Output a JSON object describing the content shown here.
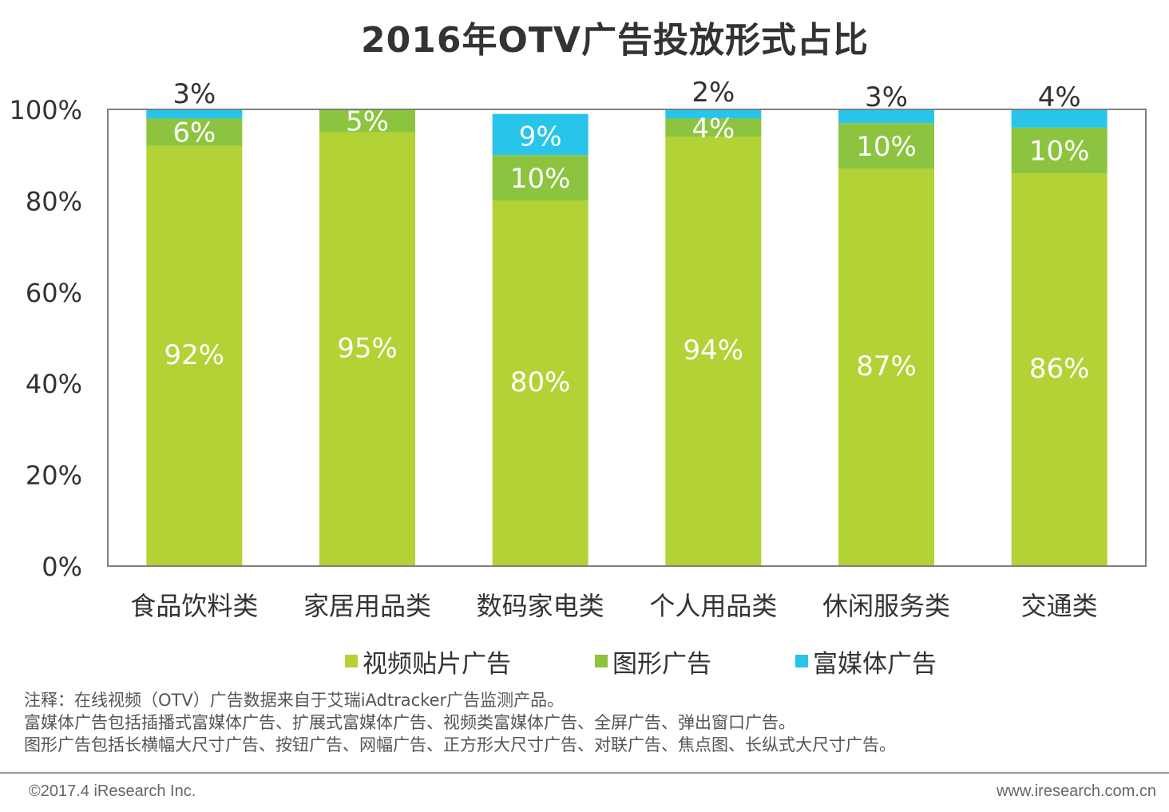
{
  "colors": {
    "video_patch": "#b2d235",
    "graphic": "#8cc43f",
    "rich_media": "#29c4ea",
    "frame": "#808080",
    "value_label_light": "#ffffff",
    "value_label_dark": "#333333"
  },
  "chart_data": {
    "type": "bar",
    "stacked": true,
    "title": "2016年OTV广告投放形式占比",
    "categories": [
      "食品饮料类",
      "家居用品类",
      "数码家电类",
      "个人用品类",
      "休闲服务类",
      "交通类"
    ],
    "series": [
      {
        "name": "视频贴片广告",
        "values": [
          92,
          95,
          80,
          94,
          87,
          86
        ],
        "labels": [
          "92%",
          "95%",
          "80%",
          "94%",
          "87%",
          "86%"
        ]
      },
      {
        "name": "图形广告",
        "values": [
          6,
          5,
          10,
          4,
          10,
          10
        ],
        "labels": [
          "6%",
          "5%",
          "10%",
          "4%",
          "10%",
          "10%"
        ]
      },
      {
        "name": "富媒体广告",
        "values": [
          3,
          0,
          9,
          2,
          3,
          4
        ],
        "labels": [
          "3%",
          "",
          "9%",
          "2%",
          "3%",
          "4%"
        ]
      }
    ],
    "yticks": [
      "0%",
      "20%",
      "40%",
      "60%",
      "80%",
      "100%"
    ],
    "ylim": [
      0,
      100
    ],
    "legend_position": "bottom",
    "grid": false
  },
  "notes": [
    "注释：在线视频（OTV）广告数据来自于艾瑞iAdtracker广告监测产品。",
    "富媒体广告包括插播式富媒体广告、扩展式富媒体广告、视频类富媒体广告、全屏广告、弹出窗口广告。",
    "图形广告包括长横幅大尺寸广告、按钮广告、网幅广告、正方形大尺寸广告、对联广告、焦点图、长纵式大尺寸广告。"
  ],
  "footer": {
    "copyright": "©2017.4 iResearch Inc.",
    "website": "www.iresearch.com.cn"
  }
}
